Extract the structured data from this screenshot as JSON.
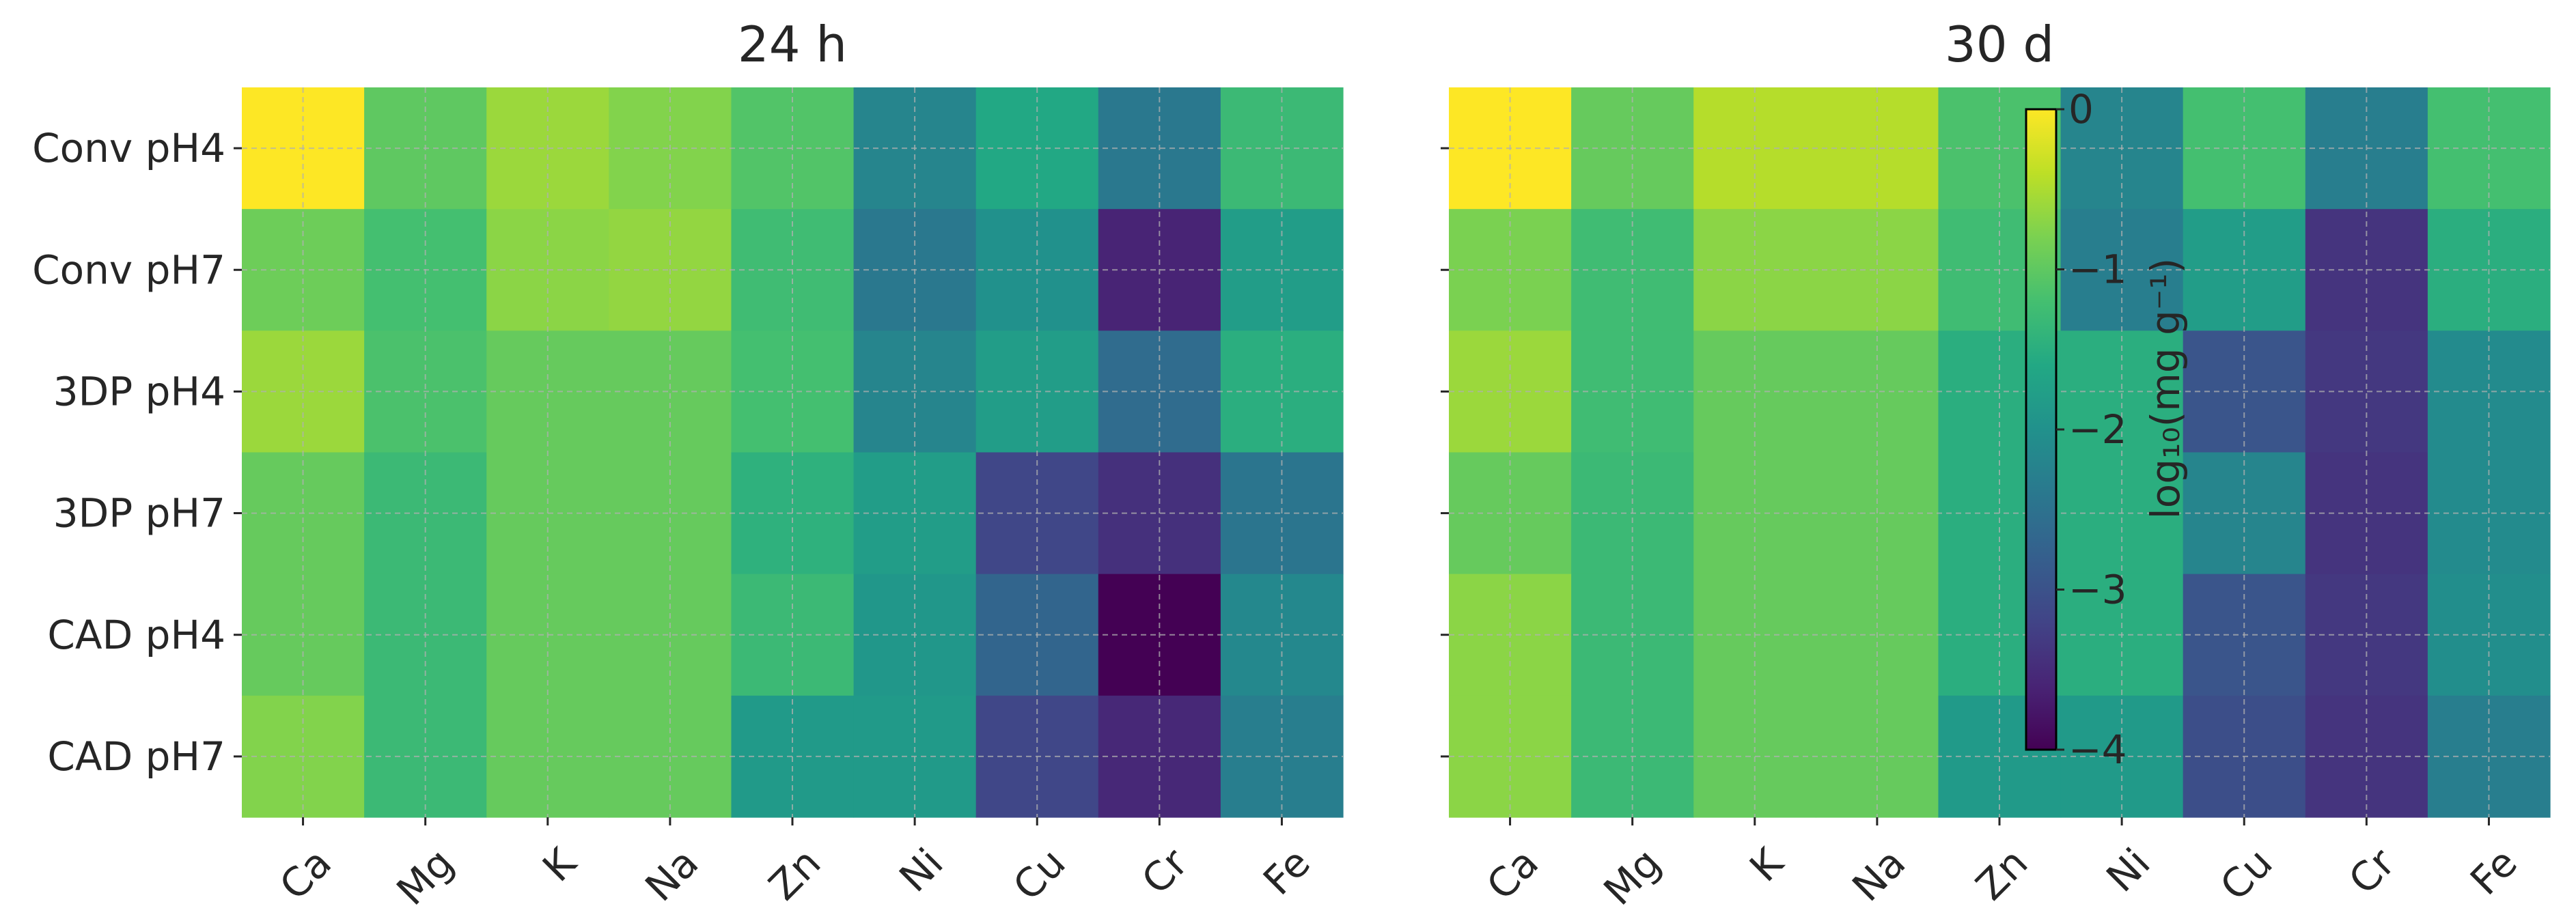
{
  "chart_data": [
    {
      "type": "heatmap",
      "title": "24 h",
      "rows": [
        "Conv pH4",
        "Conv pH7",
        "3DP pH4",
        "3DP pH7",
        "CAD pH4",
        "CAD pH7"
      ],
      "columns": [
        "Ca",
        "Mg",
        "K",
        "Na",
        "Zn",
        "Ni",
        "Cu",
        "Cr",
        "Fe"
      ],
      "values": [
        [
          0.0,
          -1.0,
          -0.6,
          -0.75,
          -1.1,
          -2.2,
          -1.6,
          -2.4,
          -1.3
        ],
        [
          -0.9,
          -1.2,
          -0.7,
          -0.65,
          -1.25,
          -2.4,
          -2.0,
          -3.6,
          -1.8
        ],
        [
          -0.6,
          -1.15,
          -0.95,
          -0.95,
          -1.2,
          -2.2,
          -1.8,
          -2.6,
          -1.5
        ],
        [
          -0.95,
          -1.3,
          -0.95,
          -0.95,
          -1.45,
          -1.8,
          -3.15,
          -3.45,
          -2.45
        ],
        [
          -0.95,
          -1.3,
          -0.95,
          -0.95,
          -1.3,
          -1.9,
          -2.7,
          -4.0,
          -2.15
        ],
        [
          -0.75,
          -1.3,
          -0.95,
          -0.95,
          -1.85,
          -1.85,
          -3.15,
          -3.55,
          -2.3
        ]
      ],
      "grid": true,
      "grid_style": "dashed"
    },
    {
      "type": "heatmap",
      "title": "30 d",
      "rows": [
        "Conv pH4",
        "Conv pH7",
        "3DP pH4",
        "3DP pH7",
        "CAD pH4",
        "CAD pH7"
      ],
      "columns": [
        "Ca",
        "Mg",
        "K",
        "Na",
        "Zn",
        "Ni",
        "Cu",
        "Cr",
        "Fe"
      ],
      "values": [
        [
          0.0,
          -0.95,
          -0.45,
          -0.45,
          -1.15,
          -2.2,
          -1.2,
          -2.3,
          -1.2
        ],
        [
          -0.8,
          -1.25,
          -0.7,
          -0.7,
          -1.25,
          -2.3,
          -1.8,
          -3.4,
          -1.5
        ],
        [
          -0.6,
          -1.25,
          -0.95,
          -0.95,
          -1.5,
          -1.5,
          -2.95,
          -3.35,
          -2.1
        ],
        [
          -0.95,
          -1.3,
          -0.95,
          -0.95,
          -1.5,
          -1.5,
          -2.2,
          -3.4,
          -2.1
        ],
        [
          -0.7,
          -1.3,
          -0.95,
          -0.95,
          -1.5,
          -1.5,
          -2.95,
          -3.35,
          -2.05
        ],
        [
          -0.7,
          -1.3,
          -0.95,
          -0.95,
          -1.85,
          -1.85,
          -3.05,
          -3.4,
          -2.3
        ]
      ],
      "grid": true,
      "grid_style": "dashed"
    }
  ],
  "colorbar": {
    "label": "log₁₀(mg g⁻¹)",
    "ticks": [
      0,
      -1,
      -2,
      -3,
      -4
    ],
    "tick_labels": [
      "0",
      "−1",
      "−2",
      "−3",
      "−4"
    ],
    "range": [
      -4,
      0
    ],
    "colormap": "viridis"
  }
}
